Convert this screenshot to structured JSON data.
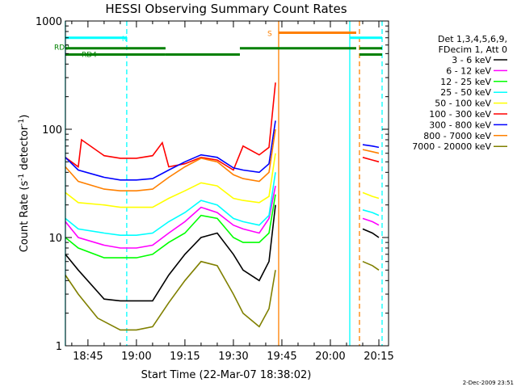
{
  "chart_data": {
    "type": "line",
    "title": "HESSI Observing Summary Count Rates",
    "xlabel": "Start Time (22-Mar-07 18:38:02)",
    "ylabel": "Count Rate (s-1 detector-1)",
    "ylabel_parts": {
      "main": "Count Rate (s",
      "sup1": "-1",
      "mid": " detector",
      "sup2": "-1",
      "end": ")"
    },
    "yscale": "log",
    "ylim": [
      1,
      1000
    ],
    "y_ticks": [
      1,
      10,
      100,
      1000
    ],
    "y_tick_labels": [
      "1",
      "10",
      "100",
      "1000"
    ],
    "xlim": [
      "18:38:02",
      "20:18:00"
    ],
    "x_ticks": [
      "18:45",
      "19:00",
      "19:15",
      "19:30",
      "19:45",
      "20:00",
      "20:15"
    ],
    "grid": false,
    "legend_placement": "right",
    "legend_header": [
      "Det 1,3,4,5,6,9,",
      "FDecim 1, Att 0"
    ],
    "timestamp": "2-Dec-2009 23:51",
    "series": [
      {
        "name": "3 - 6 keV",
        "color": "#000000",
        "x": [
          "18:38",
          "18:42",
          "18:50",
          "18:55",
          "19:00",
          "19:05",
          "19:10",
          "19:15",
          "19:20",
          "19:25",
          "19:30",
          "19:33",
          "19:38",
          "19:41",
          "19:43",
          "20:10",
          "20:13",
          "20:15"
        ],
        "values": [
          7,
          5,
          2.7,
          2.6,
          2.6,
          2.6,
          4.5,
          7,
          10,
          11,
          7,
          5,
          4,
          6,
          20,
          12,
          11,
          10
        ]
      },
      {
        "name": "6 - 12 keV",
        "color": "#ff00ff",
        "x": [
          "18:38",
          "18:42",
          "18:50",
          "18:55",
          "19:00",
          "19:05",
          "19:10",
          "19:15",
          "19:20",
          "19:25",
          "19:30",
          "19:33",
          "19:38",
          "19:41",
          "19:43",
          "20:10",
          "20:13",
          "20:15"
        ],
        "values": [
          14,
          10,
          8.5,
          8,
          8,
          8.5,
          11,
          14,
          19,
          17,
          13,
          12,
          11,
          15,
          30,
          15,
          14,
          13
        ]
      },
      {
        "name": "12 - 25 keV",
        "color": "#00ff00",
        "x": [
          "18:38",
          "18:42",
          "18:50",
          "18:55",
          "19:00",
          "19:05",
          "19:10",
          "19:15",
          "19:20",
          "19:25",
          "19:30",
          "19:33",
          "19:38",
          "19:41",
          "19:43"
        ],
        "values": [
          10,
          8,
          6.5,
          6.5,
          6.5,
          7,
          9,
          11,
          16,
          15,
          10,
          9,
          9,
          11,
          25
        ]
      },
      {
        "name": "25 - 50 keV",
        "color": "#00ffff",
        "x": [
          "18:38",
          "18:42",
          "18:50",
          "18:55",
          "19:00",
          "19:05",
          "19:10",
          "19:15",
          "19:20",
          "19:25",
          "19:30",
          "19:33",
          "19:38",
          "19:41",
          "19:43",
          "20:10",
          "20:13",
          "20:15"
        ],
        "values": [
          15,
          12,
          11,
          10.5,
          10.5,
          11,
          14,
          17,
          22,
          20,
          15,
          14,
          13,
          16,
          40,
          18,
          17,
          16
        ]
      },
      {
        "name": "50 - 100 keV",
        "color": "#ffff00",
        "x": [
          "18:38",
          "18:42",
          "18:50",
          "18:55",
          "19:00",
          "19:05",
          "19:10",
          "19:15",
          "19:20",
          "19:25",
          "19:30",
          "19:33",
          "19:38",
          "19:41",
          "19:43",
          "20:10",
          "20:13",
          "20:15"
        ],
        "values": [
          26,
          21,
          20,
          19,
          19,
          19,
          23,
          27,
          32,
          30,
          23,
          22,
          21,
          24,
          60,
          26,
          24,
          23
        ]
      },
      {
        "name": "100 - 300 keV",
        "color": "#ff0000",
        "x": [
          "18:38",
          "18:42",
          "18:43",
          "18:50",
          "18:55",
          "19:00",
          "19:05",
          "19:08",
          "19:10",
          "19:15",
          "19:20",
          "19:25",
          "19:30",
          "19:33",
          "19:38",
          "19:41",
          "19:43",
          "20:10",
          "20:13",
          "20:15"
        ],
        "values": [
          55,
          45,
          80,
          57,
          54,
          54,
          57,
          75,
          45,
          48,
          55,
          52,
          42,
          70,
          58,
          68,
          270,
          55,
          52,
          50
        ]
      },
      {
        "name": "300 - 800 keV",
        "color": "#0000ff",
        "x": [
          "18:38",
          "18:42",
          "18:50",
          "18:55",
          "19:00",
          "19:05",
          "19:10",
          "19:15",
          "19:20",
          "19:25",
          "19:30",
          "19:33",
          "19:38",
          "19:41",
          "19:43",
          "20:10",
          "20:13",
          "20:15"
        ],
        "values": [
          55,
          42,
          36,
          34,
          34,
          35,
          42,
          50,
          58,
          55,
          44,
          42,
          40,
          48,
          120,
          72,
          70,
          68
        ]
      },
      {
        "name": "800 - 7000 keV",
        "color": "#ff8000",
        "x": [
          "18:38",
          "18:42",
          "18:50",
          "18:55",
          "19:00",
          "19:05",
          "19:10",
          "19:15",
          "19:20",
          "19:25",
          "19:30",
          "19:33",
          "19:38",
          "19:41",
          "19:43",
          "20:10",
          "20:13",
          "20:15"
        ],
        "values": [
          45,
          33,
          28,
          27,
          27,
          28,
          36,
          45,
          54,
          50,
          38,
          35,
          33,
          40,
          100,
          65,
          62,
          60
        ]
      },
      {
        "name": "7000 - 20000 keV",
        "color": "#808000",
        "x": [
          "18:38",
          "18:42",
          "18:48",
          "18:55",
          "19:00",
          "19:05",
          "19:10",
          "19:15",
          "19:20",
          "19:25",
          "19:30",
          "19:33",
          "19:38",
          "19:41",
          "19:43",
          "20:10",
          "20:13",
          "20:15"
        ],
        "values": [
          4.5,
          3,
          1.8,
          1.4,
          1.4,
          1.5,
          2.5,
          4,
          6,
          5.5,
          3,
          2,
          1.5,
          2.2,
          5,
          6,
          5.5,
          5
        ]
      }
    ],
    "state_bars": [
      {
        "label": "N",
        "color": "#00ffff",
        "y": 700,
        "segments": [
          [
            "18:38",
            "18:57"
          ],
          [
            "20:06",
            "20:16"
          ]
        ]
      },
      {
        "label": "S",
        "color": "#ff8000",
        "y": 780,
        "segments": [
          [
            "19:44",
            "20:08"
          ]
        ]
      },
      {
        "label": "RD0",
        "color": "#008000",
        "y": 560,
        "segments": [
          [
            "18:38",
            "19:09"
          ],
          [
            "19:32",
            "20:08"
          ],
          [
            "20:09",
            "20:16"
          ]
        ]
      },
      {
        "label": "RD4",
        "color": "#008000",
        "y": 490,
        "segments": [
          [
            "18:38",
            "19:09"
          ],
          [
            "19:09",
            "19:32"
          ],
          [
            "20:09",
            "20:16"
          ]
        ]
      }
    ],
    "markers": [
      {
        "x": "18:38",
        "style": "solid",
        "color": "#00ffff"
      },
      {
        "x": "18:57",
        "style": "dashed",
        "color": "#00ffff"
      },
      {
        "x": "19:44",
        "style": "solid",
        "color": "#ff8000"
      },
      {
        "x": "20:06",
        "style": "solid",
        "color": "#00ffff"
      },
      {
        "x": "20:09",
        "style": "dashed",
        "color": "#ff8000"
      },
      {
        "x": "20:16",
        "style": "dashed",
        "color": "#00ffff"
      }
    ]
  }
}
